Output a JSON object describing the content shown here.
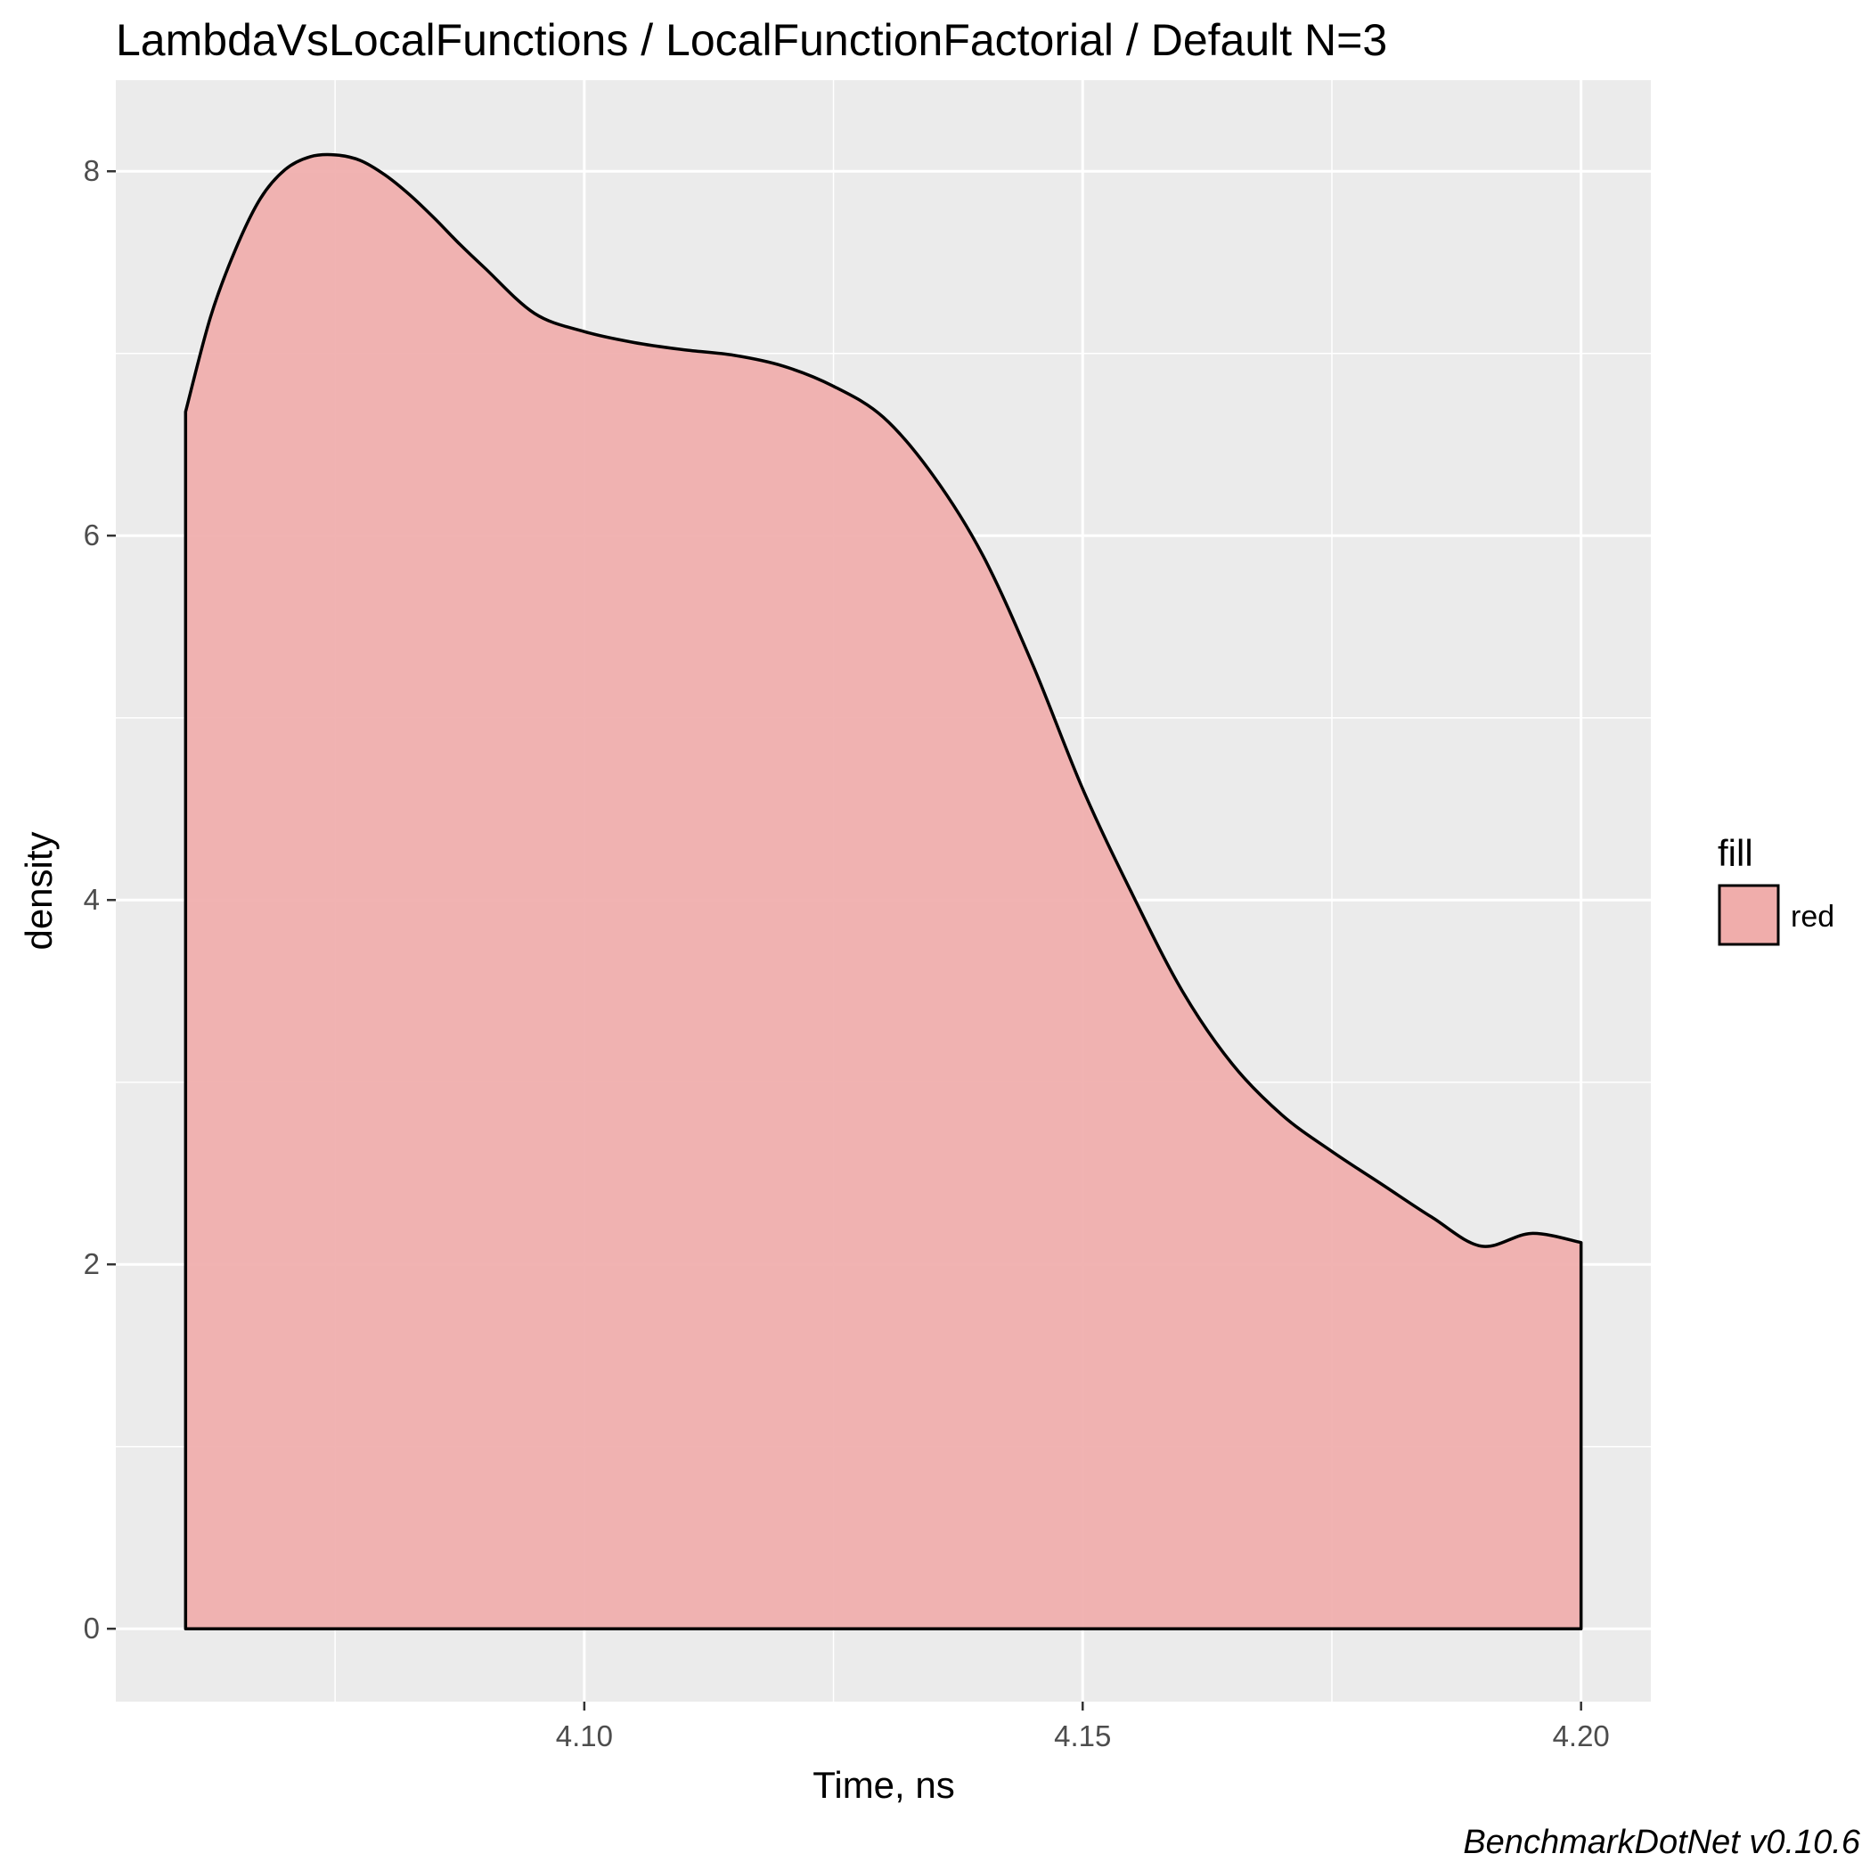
{
  "chart_data": {
    "type": "area",
    "title": "LambdaVsLocalFunctions / LocalFunctionFactorial / Default N=3",
    "xlabel": "Time, ns",
    "ylabel": "density",
    "caption": "BenchmarkDotNet v0.10.6",
    "xlim": [
      4.053,
      4.207
    ],
    "ylim": [
      -0.4,
      8.5
    ],
    "x_ticks": [
      4.1,
      4.15,
      4.2
    ],
    "x_tick_labels": [
      "4.10",
      "4.15",
      "4.20"
    ],
    "y_ticks": [
      0,
      2,
      4,
      6,
      8
    ],
    "y_tick_labels": [
      "0",
      "2",
      "4",
      "6",
      "8"
    ],
    "grid": true,
    "fill_color": "#f0adab",
    "line_color": "#000000",
    "panel_color": "#ebebeb",
    "legend": {
      "title": "fill",
      "position": "right",
      "entries": [
        {
          "label": "red",
          "color": "#f0adab"
        }
      ]
    },
    "series": [
      {
        "name": "red",
        "x": [
          4.06,
          4.0625,
          4.065,
          4.0675,
          4.07,
          4.0725,
          4.075,
          4.0775,
          4.08,
          4.0825,
          4.085,
          4.0875,
          4.09,
          4.095,
          4.1,
          4.105,
          4.11,
          4.115,
          4.12,
          4.125,
          4.13,
          4.135,
          4.14,
          4.145,
          4.15,
          4.155,
          4.16,
          4.165,
          4.17,
          4.175,
          4.18,
          4.185,
          4.19,
          4.195,
          4.2
        ],
        "y": [
          6.68,
          7.2,
          7.57,
          7.85,
          8.01,
          8.08,
          8.09,
          8.06,
          7.98,
          7.87,
          7.74,
          7.6,
          7.47,
          7.22,
          7.12,
          7.06,
          7.02,
          6.99,
          6.93,
          6.82,
          6.65,
          6.33,
          5.89,
          5.29,
          4.61,
          4.03,
          3.5,
          3.1,
          2.82,
          2.62,
          2.44,
          2.26,
          2.1,
          2.17,
          2.12
        ]
      }
    ]
  }
}
